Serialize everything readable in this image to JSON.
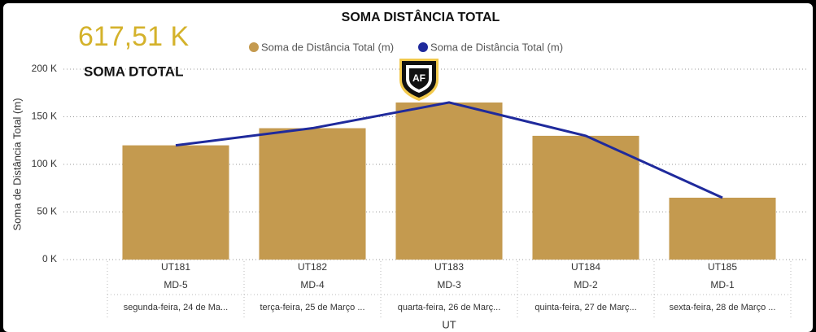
{
  "card": {
    "value": "617,51 K",
    "label": "SOMA DTOTAL"
  },
  "chart_data": {
    "type": "combo",
    "title": "SOMA DISTÂNCIA TOTAL",
    "x_label": "UT",
    "y_label": "Soma de Distância Total (m)",
    "categories": [
      "UT181",
      "UT182",
      "UT183",
      "UT184",
      "UT185"
    ],
    "subcategories": [
      "MD-5",
      "MD-4",
      "MD-3",
      "MD-2",
      "MD-1"
    ],
    "dates": [
      "segunda-feira, 24 de Ma...",
      "terça-feira, 25 de Março ...",
      "quarta-feira, 26 de Març...",
      "quinta-feira, 27 de Març...",
      "sexta-feira, 28 de Março ..."
    ],
    "series": [
      {
        "name": "Soma de Distância Total (m)",
        "type": "bar",
        "color": "#c49a4f",
        "values": [
          120000,
          138000,
          165000,
          130000,
          65000
        ]
      },
      {
        "name": "Soma de Distância Total (m)",
        "type": "line",
        "color": "#1f2a9c",
        "values": [
          120000,
          138000,
          165000,
          130000,
          65000
        ]
      }
    ],
    "ylim": [
      0,
      200000
    ],
    "yticks": [
      {
        "value": 0,
        "label": "0 K"
      },
      {
        "value": 50000,
        "label": "50 K"
      },
      {
        "value": 100000,
        "label": "100 K"
      },
      {
        "value": 150000,
        "label": "150 K"
      },
      {
        "value": 200000,
        "label": "200 K"
      }
    ],
    "grid": true
  }
}
